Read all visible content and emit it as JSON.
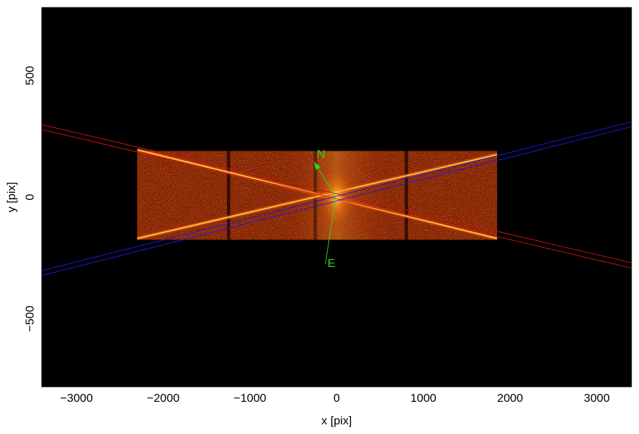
{
  "chart_data": {
    "type": "heatmap",
    "title": "",
    "xlabel": "x [pix]",
    "ylabel": "y [pix]",
    "xlim": [
      -3400,
      3400
    ],
    "ylim": [
      -780,
      780
    ],
    "x_ticks": [
      {
        "value": -3000,
        "label": "−3000"
      },
      {
        "value": -2000,
        "label": "−2000"
      },
      {
        "value": -1000,
        "label": "−1000"
      },
      {
        "value": 0,
        "label": "0"
      },
      {
        "value": 1000,
        "label": "1000"
      },
      {
        "value": 2000,
        "label": "2000"
      },
      {
        "value": 3000,
        "label": "3000"
      }
    ],
    "y_ticks": [
      {
        "value": -500,
        "label": "−500"
      },
      {
        "value": 0,
        "label": "0"
      },
      {
        "value": 500,
        "label": "500"
      }
    ],
    "grid": false,
    "background_color": "#000000",
    "colormap": "hot",
    "detector_region": {
      "x": [
        -2300,
        1850
      ],
      "y": [
        -175,
        190
      ]
    },
    "dark_gaps_x": [
      -1250,
      -250,
      800
    ],
    "spectral_traces": [
      {
        "x": [
          -2300,
          1850
        ],
        "y": [
          195,
          -170
        ]
      },
      {
        "x": [
          -2300,
          1850
        ],
        "y": [
          -170,
          175
        ]
      }
    ],
    "region_lines": [
      {
        "color": "#d01010",
        "x": [
          -3400,
          3400
        ],
        "y": [
          298,
          -270
        ]
      },
      {
        "color": "#d01010",
        "x": [
          -3400,
          3400
        ],
        "y": [
          278,
          -292
        ]
      },
      {
        "color": "#1a1adc",
        "x": [
          -3400,
          3400
        ],
        "y": [
          -302,
          310
        ]
      },
      {
        "color": "#1a1adc",
        "x": [
          -3400,
          3400
        ],
        "y": [
          -322,
          290
        ]
      }
    ],
    "compass": {
      "color": "#22dd22",
      "origin": [
        -10,
        0
      ],
      "north": {
        "label": "N",
        "tip": [
          -260,
          145
        ],
        "label_at": [
          -180,
          175
        ]
      },
      "east": {
        "label": "E",
        "tip": [
          -130,
          -275
        ],
        "label_at": [
          -60,
          -275
        ]
      }
    }
  }
}
